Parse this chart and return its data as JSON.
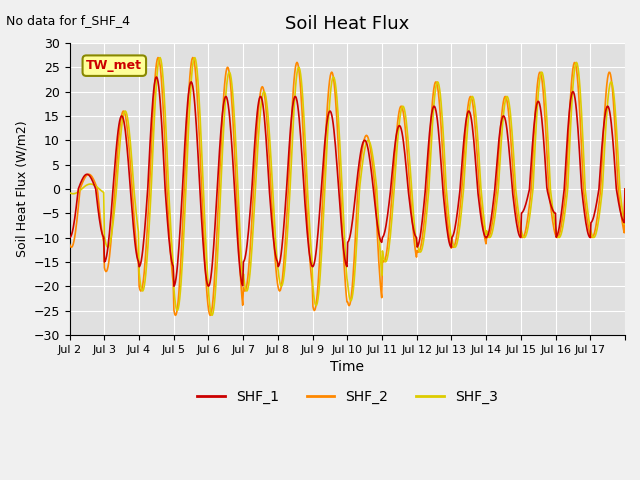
{
  "title": "Soil Heat Flux",
  "subtitle": "No data for f_SHF_4",
  "xlabel": "Time",
  "ylabel": "Soil Heat Flux (W/m2)",
  "ylim": [
    -30,
    30
  ],
  "xlim": [
    0,
    16
  ],
  "xtick_positions": [
    0,
    1,
    2,
    3,
    4,
    5,
    6,
    7,
    8,
    9,
    10,
    11,
    12,
    13,
    14,
    15,
    16
  ],
  "xtick_labels": [
    "Jul 2",
    "Jul 3",
    "Jul 4",
    "Jul 5",
    "Jul 6",
    "Jul 7",
    "Jul 8",
    "Jul 9",
    "Jul 10",
    "Jul 11",
    "Jul 12",
    "Jul 13",
    "Jul 14",
    "Jul 15",
    "Jul 16",
    "Jul 17",
    ""
  ],
  "ytick_values": [
    -30,
    -25,
    -20,
    -15,
    -10,
    -5,
    0,
    5,
    10,
    15,
    20,
    25,
    30
  ],
  "colors": {
    "SHF_1": "#cc0000",
    "SHF_2": "#ff8800",
    "SHF_3": "#ddcc00"
  },
  "legend_label": "TW_met",
  "legend_box_color": "#ffff99",
  "legend_box_edge": "#888800",
  "background_color": "#e0e0e0",
  "fig_background_color": "#f0f0f0",
  "grid_color": "#ffffff",
  "n_days": 16,
  "amplitude_shf1": [
    3,
    15,
    23,
    22,
    19,
    19,
    19,
    16,
    10,
    13,
    17,
    16,
    15,
    18,
    20,
    17
  ],
  "amplitude_shf2": [
    3,
    16,
    27,
    27,
    25,
    21,
    26,
    24,
    11,
    17,
    22,
    19,
    19,
    24,
    26,
    24
  ],
  "amplitude_shf3": [
    1,
    16,
    27,
    27,
    24,
    20,
    25,
    23,
    10,
    17,
    22,
    19,
    19,
    24,
    26,
    22
  ],
  "neg_amplitude_shf1": [
    -10,
    -15,
    -16,
    -20,
    -20,
    -15,
    -16,
    -16,
    -11,
    -10,
    -12,
    -10,
    -10,
    -5,
    -10,
    -7
  ],
  "neg_amplitude_shf2": [
    -12,
    -17,
    -21,
    -26,
    -26,
    -21,
    -21,
    -25,
    -24,
    -15,
    -13,
    -12,
    -10,
    -10,
    -10,
    -10
  ],
  "neg_amplitude_shf3": [
    -1,
    -12,
    -21,
    -25,
    -26,
    -21,
    -20,
    -24,
    -23,
    -15,
    -13,
    -12,
    -10,
    -10,
    -10,
    -10
  ],
  "phase_shift_shf1": 0.0,
  "phase_shift_shf2": -0.05,
  "phase_shift_shf3": -0.1
}
